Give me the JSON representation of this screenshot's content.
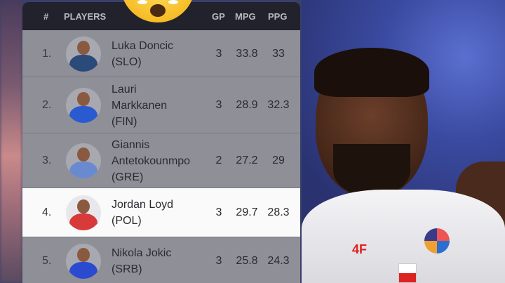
{
  "table": {
    "headers": {
      "rank": "#",
      "player": "PLAYERS",
      "gp": "GP",
      "mpg": "MPG",
      "ppg": "PPG"
    },
    "rows": [
      {
        "rank": "1.",
        "name_lines": [
          "Luka Doncic",
          "(SLO)"
        ],
        "gp": "3",
        "mpg": "33.8",
        "ppg": "33",
        "jersey_color": "#2a4a7a"
      },
      {
        "rank": "2.",
        "name_lines": [
          "Lauri",
          "Markkanen",
          "(FIN)"
        ],
        "gp": "3",
        "mpg": "28.9",
        "ppg": "32.3",
        "jersey_color": "#2a5ad0"
      },
      {
        "rank": "3.",
        "name_lines": [
          "Giannis",
          "Antetokounmpo",
          "(GRE)"
        ],
        "gp": "2",
        "mpg": "27.2",
        "ppg": "29",
        "jersey_color": "#6a8ad0"
      },
      {
        "rank": "4.",
        "name_lines": [
          "Jordan Loyd",
          "(POL)"
        ],
        "gp": "3",
        "mpg": "29.7",
        "ppg": "28.3",
        "jersey_color": "#d83a3a",
        "highlighted": true
      },
      {
        "rank": "5.",
        "name_lines": [
          "Nikola Jokic",
          "(SRB)"
        ],
        "gp": "3",
        "mpg": "25.8",
        "ppg": "24.3",
        "jersey_color": "#2a4ad0"
      }
    ]
  },
  "photo": {
    "jersey_logo": "4F",
    "emoji": "astonished-face"
  },
  "colors": {
    "header_bg": "#22222c",
    "row_bg": "#8f8f98",
    "highlight_bg": "#fafafa"
  }
}
